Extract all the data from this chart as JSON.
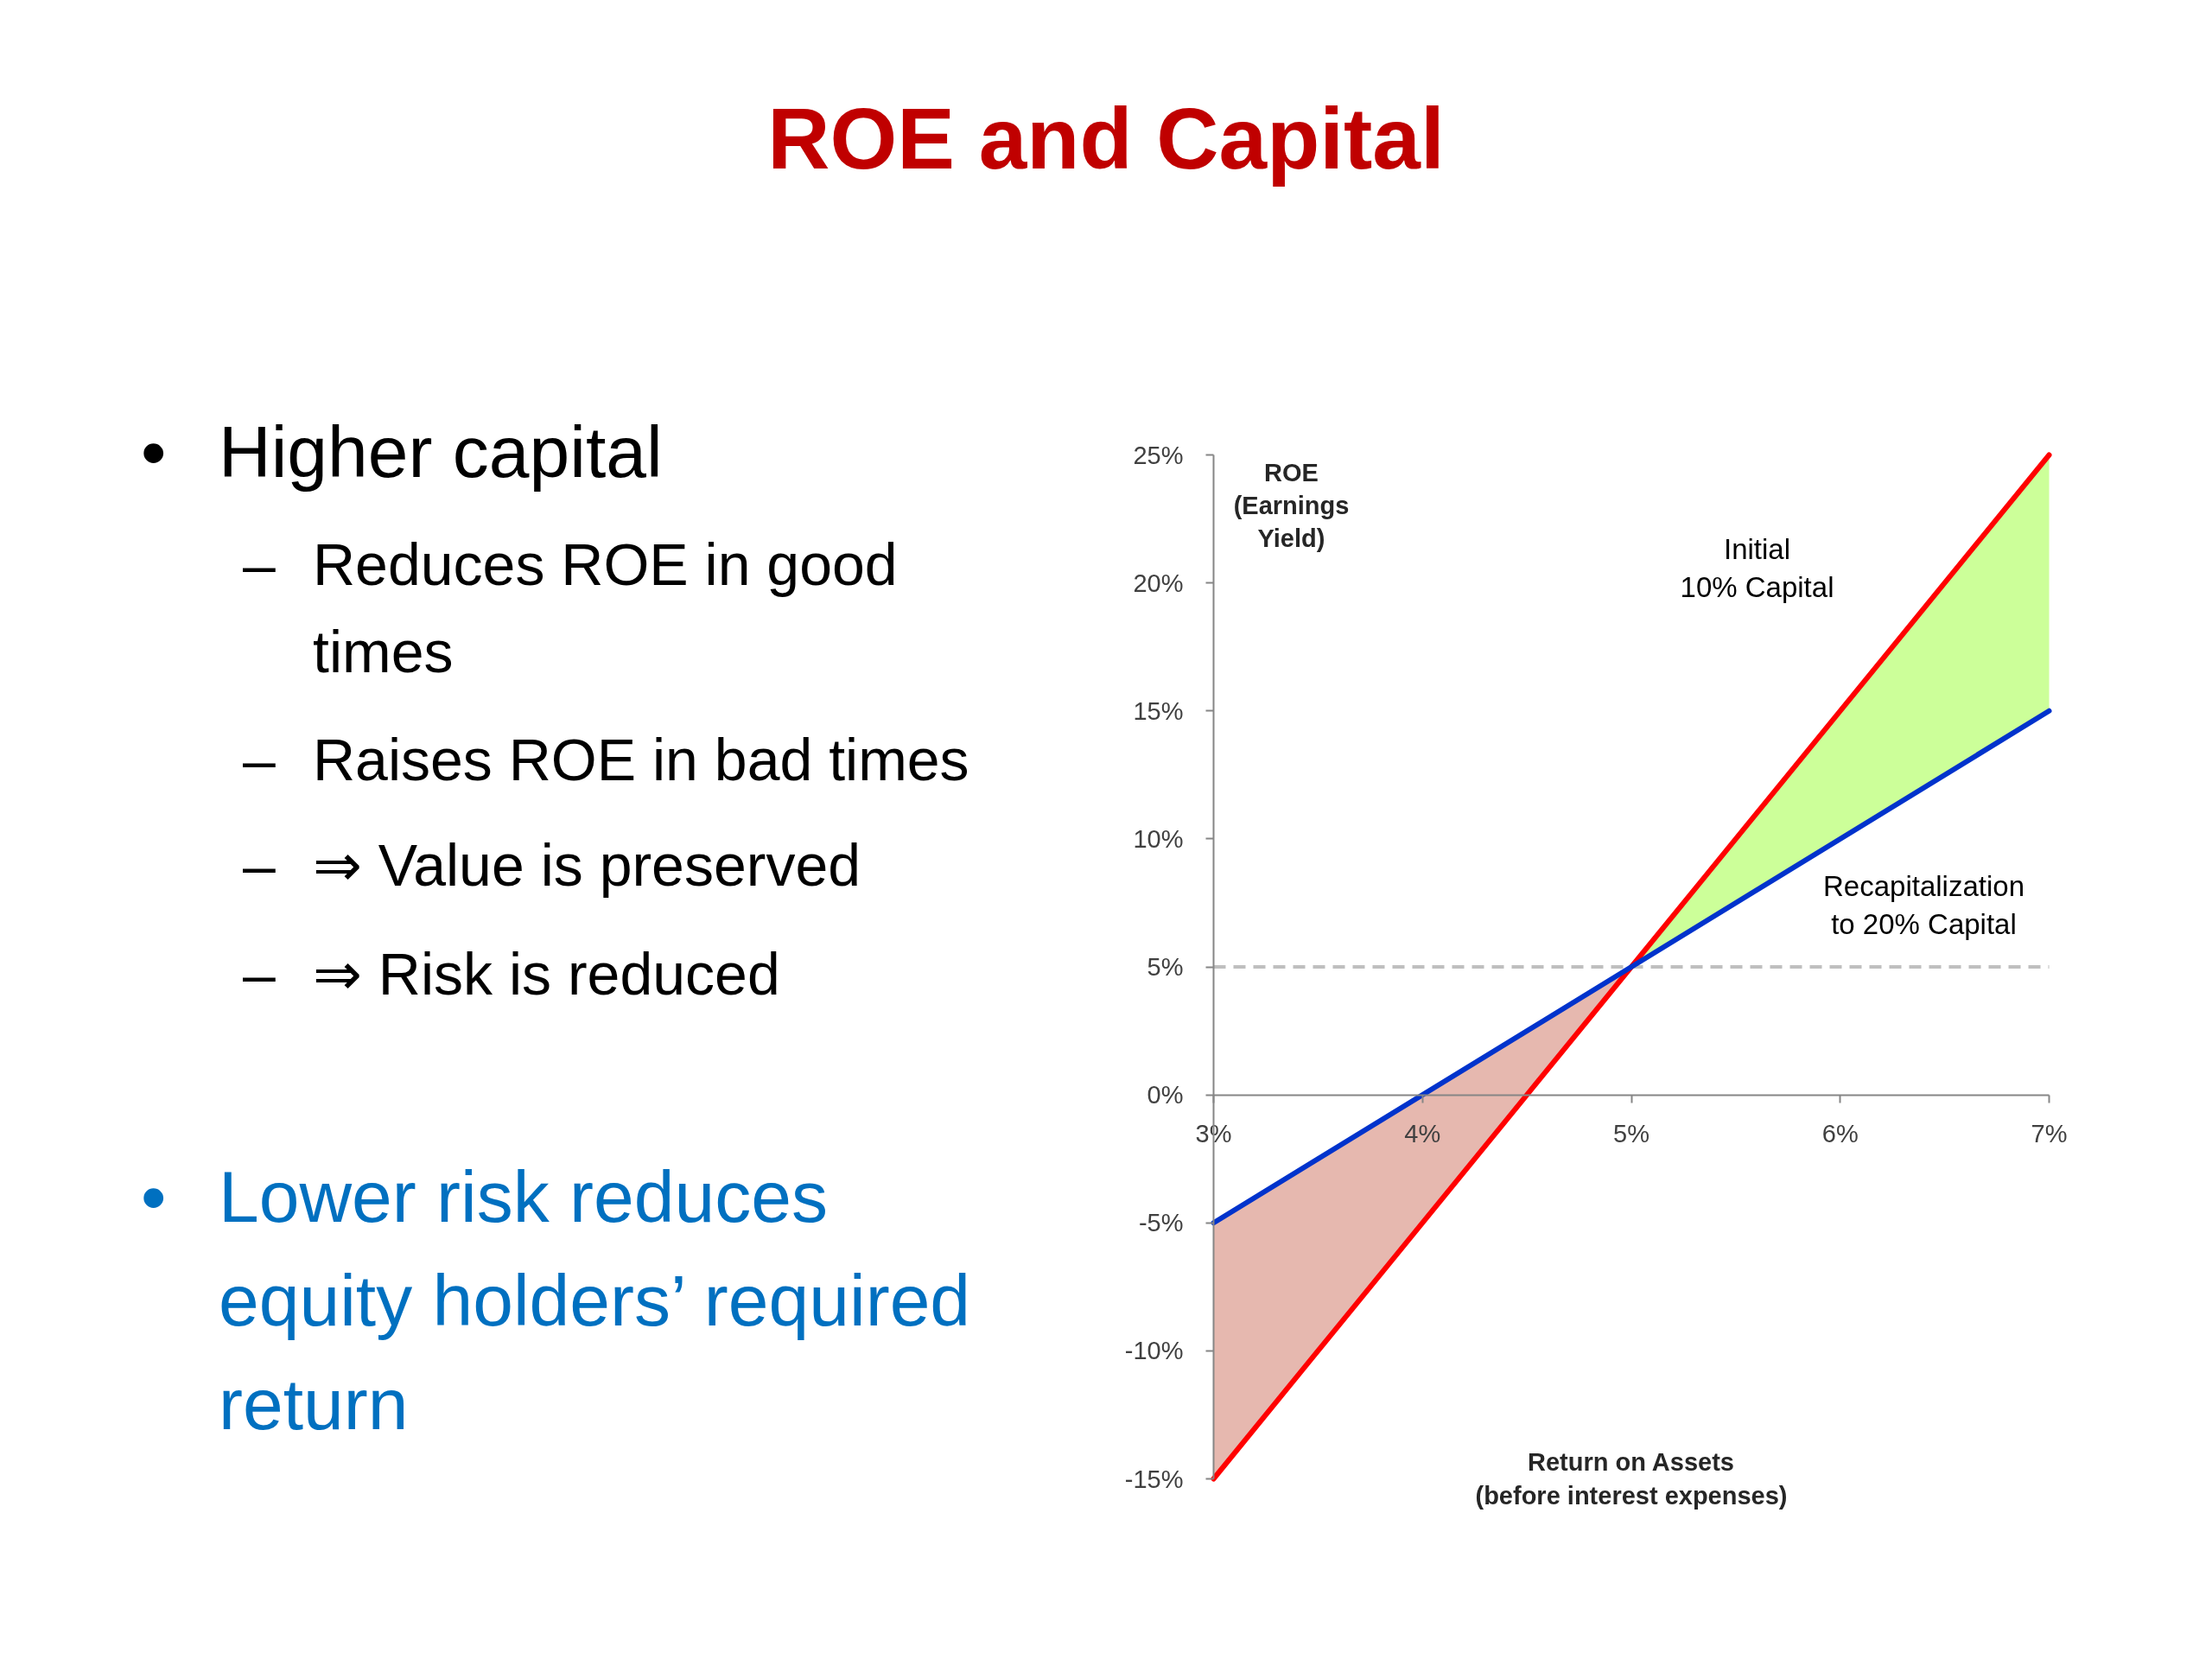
{
  "chart_data": {
    "type": "line",
    "title": "ROE and Capital",
    "xlabel": "Return on Assets\n(before interest expenses)",
    "ylabel": "ROE\n(Earnings\nYield)",
    "x": [
      3,
      5,
      7
    ],
    "series": [
      {
        "name": "Initial\n10% Capital",
        "color": "#ff0000",
        "values": [
          -15,
          5,
          25
        ],
        "lower": [
          null,
          5,
          15
        ],
        "upper": [
          null,
          5,
          25
        ]
      },
      {
        "name": "Recapitalization\nto 20% Capital",
        "color": "#0033cc",
        "values": [
          -5,
          5,
          15
        ],
        "lower": [
          -15,
          5,
          null
        ],
        "upper": [
          -5,
          5,
          null
        ]
      }
    ],
    "xlim": [
      3,
      7
    ],
    "ylim": [
      -15,
      25
    ],
    "xticks": [
      {
        "value": 3,
        "label": "3%"
      },
      {
        "value": 4,
        "label": "4%"
      },
      {
        "value": 5,
        "label": "5%"
      },
      {
        "value": 6,
        "label": "6%"
      },
      {
        "value": 7,
        "label": "7%"
      }
    ],
    "yticks": [
      {
        "value": -15,
        "label": "-15%"
      },
      {
        "value": -10,
        "label": "-10%"
      },
      {
        "value": -5,
        "label": "-5%"
      },
      {
        "value": 0,
        "label": "0%"
      },
      {
        "value": 5,
        "label": "5%"
      },
      {
        "value": 10,
        "label": "10%"
      },
      {
        "value": 15,
        "label": "15%"
      },
      {
        "value": 20,
        "label": "20%"
      },
      {
        "value": 25,
        "label": "25%"
      }
    ],
    "ref_lines": [
      {
        "axis": "y",
        "value": 5,
        "color": "#bfbfbf",
        "line_style": "dashed"
      }
    ],
    "grid": false,
    "legend": false,
    "marker": "none",
    "line_style": "solid",
    "annotations": [
      "• Higher capital",
      "– Reduces ROE in good\ntimes",
      "– Raises ROE in bad times",
      "– ⇒ Value is preserved",
      "– ⇒ Risk is reduced",
      "• Lower risk reduces\nequity holders’ required\nreturn"
    ]
  }
}
